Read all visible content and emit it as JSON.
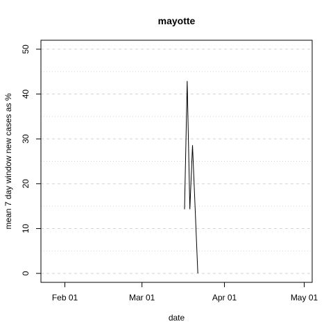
{
  "chart_data": {
    "type": "line",
    "title": "mayotte",
    "xlabel": "date",
    "ylabel": "mean  7  day window new cases as %",
    "xlim": [
      "2020-01-23",
      "2020-05-04"
    ],
    "ylim": [
      -2,
      52
    ],
    "x_ticks": [
      {
        "date": "2020-02-01",
        "label": "Feb 01"
      },
      {
        "date": "2020-03-01",
        "label": "Mar 01"
      },
      {
        "date": "2020-04-01",
        "label": "Apr 01"
      },
      {
        "date": "2020-05-01",
        "label": "May 01"
      }
    ],
    "y_ticks": [
      0,
      10,
      20,
      30,
      40,
      50
    ],
    "grid": {
      "horizontal_dashed": [
        0,
        10,
        20,
        30,
        40,
        50
      ],
      "horizontal_dotted": [
        5,
        15,
        25,
        35,
        45
      ]
    },
    "series": [
      {
        "color": "#000000",
        "points": [
          {
            "x": "2020-03-17",
            "y": 14.3
          },
          {
            "x": "2020-03-18",
            "y": 42.9
          },
          {
            "x": "2020-03-19",
            "y": 14.3
          },
          {
            "x": "2020-03-20",
            "y": 28.6
          },
          {
            "x": "2020-03-21",
            "y": 14.3
          },
          {
            "x": "2020-03-22",
            "y": 0
          }
        ]
      }
    ]
  }
}
